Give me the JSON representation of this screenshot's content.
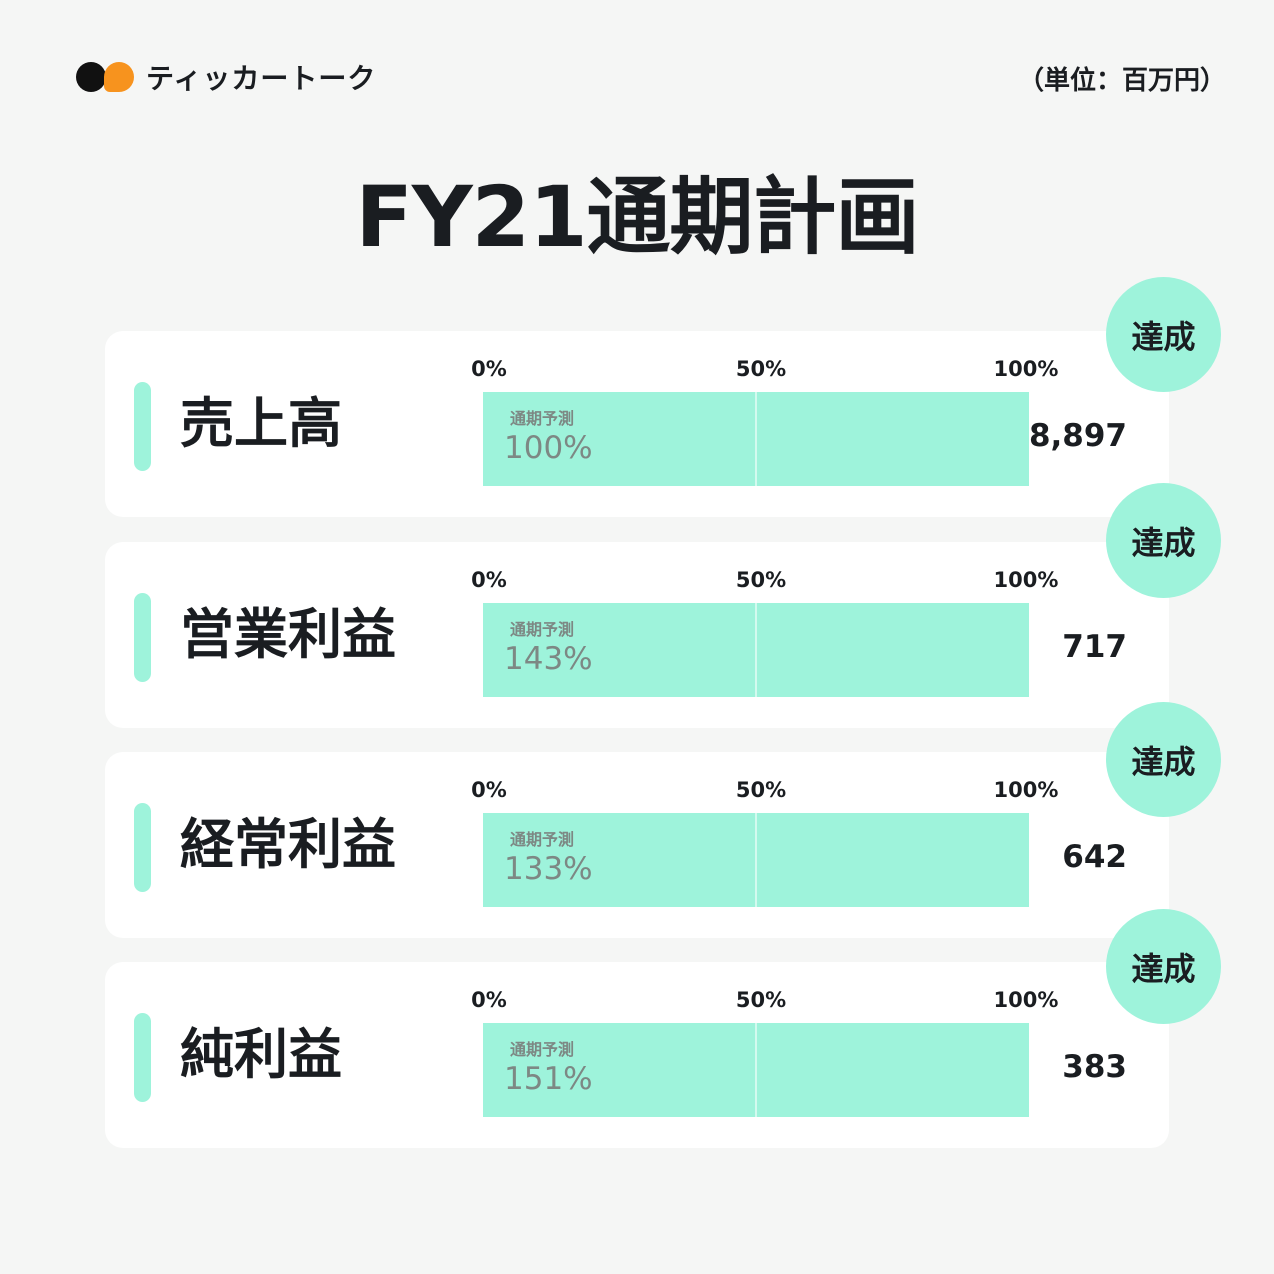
{
  "header": {
    "brand": "ティッカートーク",
    "unit": "（単位：百万円）"
  },
  "title": "FY21通期計画",
  "chart_data": {
    "type": "bar",
    "orientation": "horizontal",
    "title": "FY21通期計画",
    "x_ticks": [
      "0%",
      "50%",
      "100%"
    ],
    "xlim": [
      0,
      100
    ],
    "bar_caption": "通期予測",
    "badge": "達成",
    "items": [
      {
        "label": "売上高",
        "progress_pct": "100%",
        "progress": 100,
        "value": "8,897"
      },
      {
        "label": "営業利益",
        "progress_pct": "143%",
        "progress": 143,
        "value": "717"
      },
      {
        "label": "経常利益",
        "progress_pct": "133%",
        "progress": 133,
        "value": "642"
      },
      {
        "label": "純利益",
        "progress_pct": "151%",
        "progress": 151,
        "value": "383"
      }
    ]
  },
  "colors": {
    "accent": "#9ef3db",
    "brand_orange": "#f7931e",
    "text": "#1a1d21",
    "muted": "#7d8884"
  },
  "icons": [
    "logo-mark-icon"
  ]
}
